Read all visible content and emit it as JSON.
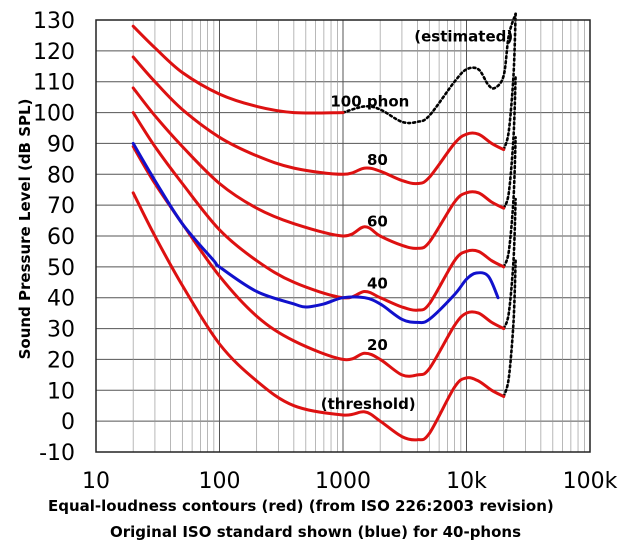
{
  "chart_data": {
    "type": "line",
    "title": "",
    "xlabel": "",
    "ylabel": "Sound Pressure Level (dB SPL)",
    "xscale": "log",
    "xlim": [
      10,
      100000
    ],
    "ylim": [
      -10,
      130
    ],
    "x_tick_labels": [
      "10",
      "100",
      "1000",
      "10k",
      "100k"
    ],
    "y_ticks": [
      -10,
      0,
      10,
      20,
      30,
      40,
      50,
      60,
      70,
      80,
      90,
      100,
      110,
      120,
      130
    ],
    "grid": true,
    "caption": [
      "Equal-loudness contours (red) (from ISO 226:2003 revision)",
      "Original ISO standard shown (blue) for 40-phons"
    ],
    "annotations": [
      {
        "text": "(estimated)",
        "x": 9500,
        "y": 123
      },
      {
        "text": "100 phon",
        "x": 1650,
        "y": 102
      },
      {
        "text": "80",
        "x": 1900,
        "y": 83
      },
      {
        "text": "60",
        "x": 1900,
        "y": 63
      },
      {
        "text": "40",
        "x": 1900,
        "y": 43
      },
      {
        "text": "20",
        "x": 1900,
        "y": 23
      },
      {
        "text": "(threshold)",
        "x": 1600,
        "y": 4
      }
    ],
    "colors": {
      "iso226": "#dd1111",
      "original": "#1111cc",
      "estimated": "#000000"
    },
    "series": [
      {
        "name": "threshold",
        "style": "iso226",
        "x": [
          20,
          30,
          50,
          100,
          200,
          400,
          1000,
          1500,
          2000,
          3000,
          4000,
          5000,
          8000,
          10000,
          12500,
          16000,
          20000
        ],
        "y": [
          74,
          60,
          44,
          25,
          13,
          5,
          2,
          3,
          0,
          -5,
          -6,
          -4,
          11,
          14,
          13,
          10,
          8
        ]
      },
      {
        "name": "20 phon",
        "style": "iso226",
        "x": [
          20,
          30,
          50,
          100,
          200,
          400,
          1000,
          1500,
          2000,
          3000,
          4000,
          5000,
          8000,
          10000,
          12500,
          16000,
          20000
        ],
        "y": [
          89,
          77,
          64,
          47,
          34,
          26,
          20,
          22,
          20,
          15,
          15,
          17,
          31,
          35,
          35,
          32,
          30
        ]
      },
      {
        "name": "40 phon",
        "style": "iso226",
        "x": [
          20,
          30,
          50,
          100,
          200,
          400,
          1000,
          1500,
          2000,
          3000,
          4000,
          5000,
          8000,
          10000,
          12500,
          16000,
          20000
        ],
        "y": [
          100,
          89,
          77,
          62,
          52,
          45,
          40,
          42,
          40,
          37,
          36,
          38,
          52,
          55,
          55,
          52,
          50
        ]
      },
      {
        "name": "60 phon",
        "style": "iso226",
        "x": [
          20,
          30,
          50,
          100,
          200,
          400,
          1000,
          1500,
          2000,
          3000,
          4000,
          5000,
          8000,
          10000,
          12500,
          16000,
          20000
        ],
        "y": [
          108,
          99,
          89,
          77,
          69,
          64,
          60,
          63,
          60,
          57,
          56,
          58,
          71,
          74,
          74,
          71,
          69
        ]
      },
      {
        "name": "80 phon",
        "style": "iso226",
        "x": [
          20,
          30,
          50,
          100,
          200,
          400,
          1000,
          1500,
          2000,
          3000,
          4000,
          5000,
          8000,
          10000,
          12500,
          16000,
          20000
        ],
        "y": [
          118,
          110,
          101,
          92,
          86,
          82,
          80,
          82,
          81,
          78,
          77,
          79,
          90,
          93,
          93,
          90,
          88
        ]
      },
      {
        "name": "100 phon",
        "style": "iso226",
        "x": [
          20,
          30,
          50,
          100,
          200,
          400,
          1000
        ],
        "y": [
          128,
          121,
          113,
          106,
          102,
          100,
          100
        ]
      },
      {
        "name": "100 phon (estimated)",
        "style": "estimated",
        "x": [
          1000,
          1500,
          2000,
          3000,
          4000,
          5000,
          8000,
          10000,
          12500,
          15000,
          17000,
          20000,
          22000,
          25000
        ],
        "y": [
          100,
          102,
          101,
          97,
          97,
          99,
          110,
          114,
          114,
          109,
          108,
          112,
          125,
          132
        ]
      },
      {
        "name": "80 phon (estimated)",
        "style": "estimated",
        "x": [
          20000,
          22000,
          24000,
          25000
        ],
        "y": [
          88,
          94,
          112,
          132
        ]
      },
      {
        "name": "60 phon (estimated)",
        "style": "estimated",
        "x": [
          20000,
          22000,
          24000,
          25000
        ],
        "y": [
          69,
          74,
          92,
          112
        ]
      },
      {
        "name": "40 phon (estimated)",
        "style": "estimated",
        "x": [
          20000,
          22000,
          24000,
          25000
        ],
        "y": [
          50,
          55,
          72,
          92
        ]
      },
      {
        "name": "20 phon (estimated)",
        "style": "estimated",
        "x": [
          20000,
          22000,
          24000,
          25000
        ],
        "y": [
          30,
          35,
          52,
          72
        ]
      },
      {
        "name": "threshold (estimated)",
        "style": "estimated",
        "x": [
          20000,
          22000,
          24000,
          25000
        ],
        "y": [
          8,
          14,
          32,
          52
        ]
      },
      {
        "name": "40 phon (original ISO)",
        "style": "original",
        "x": [
          20,
          30,
          50,
          90,
          100,
          200,
          400,
          500,
          700,
          1000,
          1500,
          2000,
          3000,
          4000,
          5000,
          8000,
          10000,
          12000,
          15000,
          18000
        ],
        "y": [
          90,
          78,
          64,
          52,
          50,
          42,
          38,
          37,
          38,
          40,
          40,
          38,
          33,
          32,
          33,
          41,
          46,
          48,
          47,
          40
        ]
      }
    ]
  }
}
